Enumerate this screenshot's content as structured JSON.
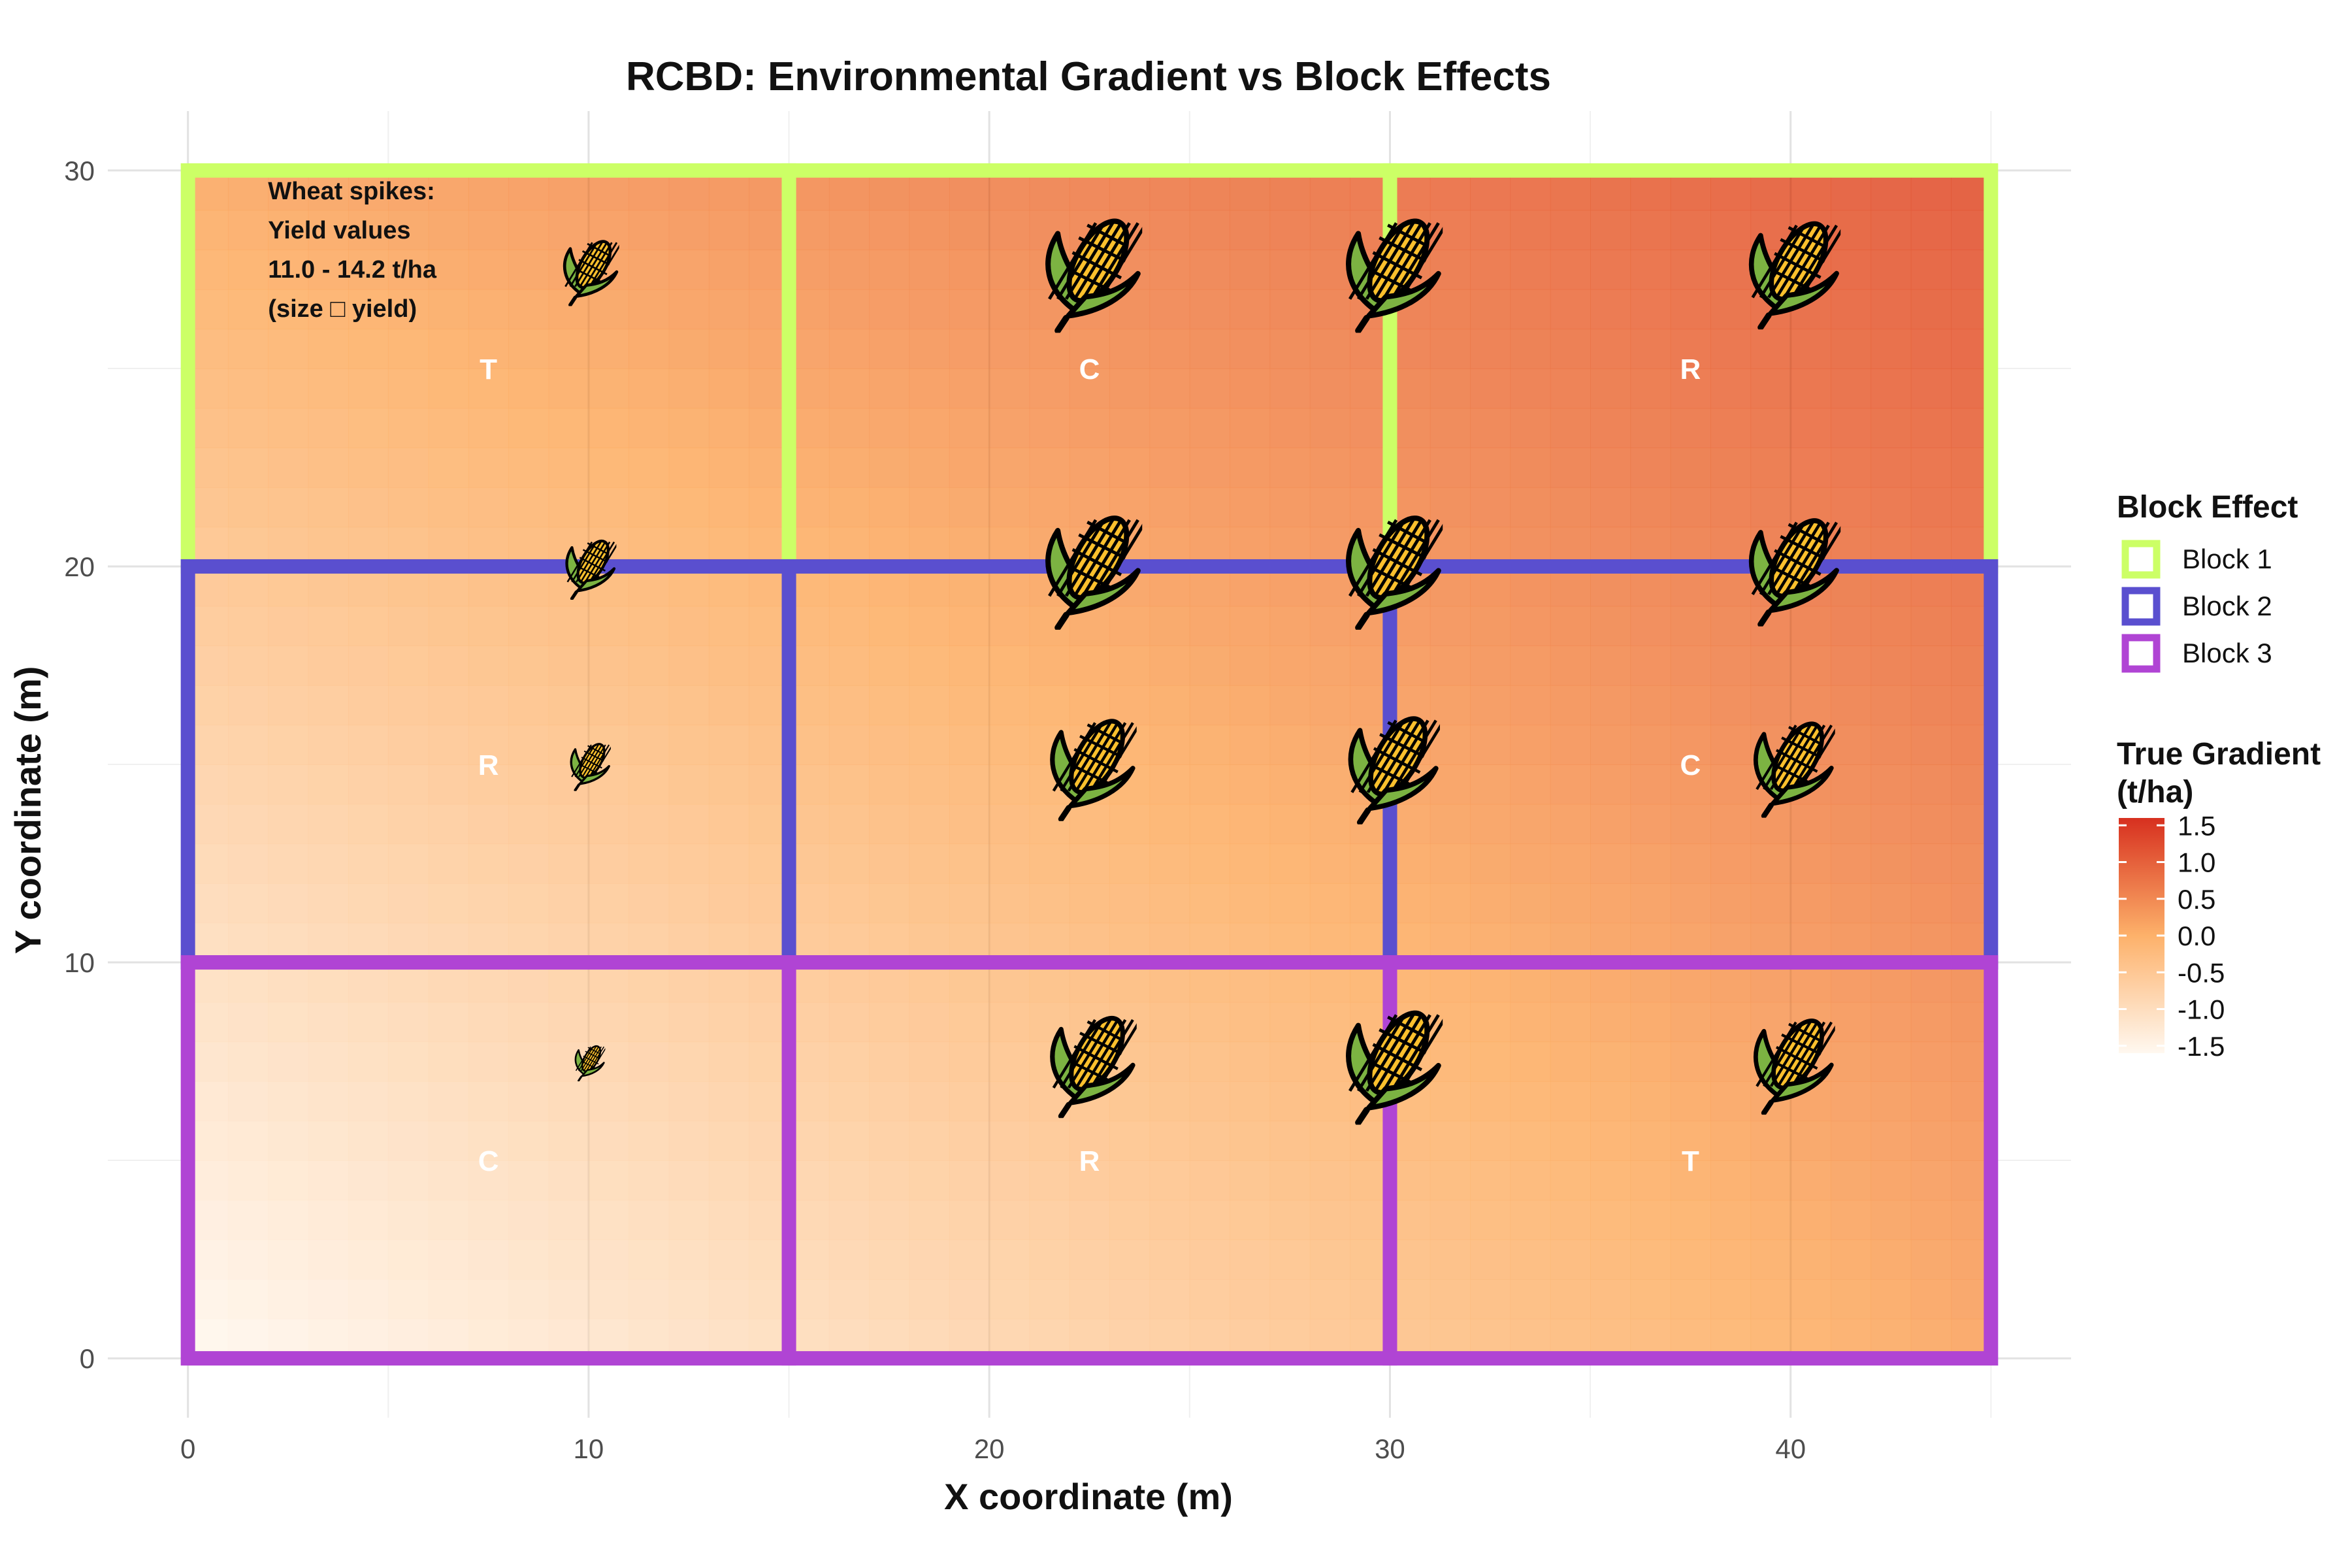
{
  "chart_data": {
    "type": "heatmap",
    "title": "RCBD: Environmental Gradient vs Block Effects",
    "xlabel": "X coordinate (m)",
    "ylabel": "Y coordinate (m)",
    "xlim": [
      -2,
      47
    ],
    "ylim": [
      -1.5,
      31.5
    ],
    "x_ticks": [
      0,
      10,
      20,
      30,
      40
    ],
    "y_ticks": [
      0,
      10,
      20,
      30
    ],
    "grid": true,
    "gradient": {
      "legend_title": "True Gradient\n(t/ha)",
      "ticks": [
        1.5,
        1.0,
        0.5,
        0.0,
        -0.5,
        -1.0,
        -1.5
      ],
      "tick_labels": [
        "1.5",
        "1.0",
        "0.5",
        "0.0",
        "-0.5",
        "-1.0",
        "-1.5"
      ],
      "range": [
        -1.6,
        1.6
      ],
      "color_low": "#fff8f0",
      "color_mid": "#fdb16a",
      "color_high": "#d7301f",
      "field_corners": {
        "x0_y0": -1.6,
        "x45_y0": 0.15,
        "x0_y30": 0.1,
        "x45_y30": 1.15
      }
    },
    "block_legend_title": "Block Effect",
    "blocks": [
      {
        "name": "Block 1",
        "y_range": [
          20,
          30
        ],
        "color": "#ccff66"
      },
      {
        "name": "Block 2",
        "y_range": [
          10,
          20
        ],
        "color": "#5a4fcf"
      },
      {
        "name": "Block 3",
        "y_range": [
          0,
          10
        ],
        "color": "#b044d4"
      }
    ],
    "plots": [
      {
        "x_range": [
          0,
          15
        ],
        "y_range": [
          20,
          30
        ],
        "label": "T",
        "label_pos": [
          7.5,
          25
        ]
      },
      {
        "x_range": [
          15,
          30
        ],
        "y_range": [
          20,
          30
        ],
        "label": "C",
        "label_pos": [
          22.5,
          25
        ]
      },
      {
        "x_range": [
          30,
          45
        ],
        "y_range": [
          20,
          30
        ],
        "label": "R",
        "label_pos": [
          37.5,
          25
        ]
      },
      {
        "x_range": [
          0,
          15
        ],
        "y_range": [
          10,
          20
        ],
        "label": "R",
        "label_pos": [
          7.5,
          15
        ]
      },
      {
        "x_range": [
          15,
          30
        ],
        "y_range": [
          10,
          20
        ],
        "label": "",
        "label_pos": [
          22.5,
          15
        ]
      },
      {
        "x_range": [
          30,
          45
        ],
        "y_range": [
          10,
          20
        ],
        "label": "C",
        "label_pos": [
          37.5,
          15
        ]
      },
      {
        "x_range": [
          0,
          15
        ],
        "y_range": [
          0,
          10
        ],
        "label": "C",
        "label_pos": [
          7.5,
          5
        ]
      },
      {
        "x_range": [
          15,
          30
        ],
        "y_range": [
          0,
          10
        ],
        "label": "R",
        "label_pos": [
          22.5,
          5
        ]
      },
      {
        "x_range": [
          30,
          45
        ],
        "y_range": [
          0,
          10
        ],
        "label": "T",
        "label_pos": [
          37.5,
          5
        ]
      }
    ],
    "wheat_spikes": [
      {
        "x": 10,
        "y": 27.5,
        "size": 0.55
      },
      {
        "x": 22.5,
        "y": 27.5,
        "size": 0.95
      },
      {
        "x": 30,
        "y": 27.5,
        "size": 0.95
      },
      {
        "x": 40,
        "y": 27.5,
        "size": 0.9
      },
      {
        "x": 10,
        "y": 20,
        "size": 0.5
      },
      {
        "x": 22.5,
        "y": 20,
        "size": 0.95
      },
      {
        "x": 30,
        "y": 20,
        "size": 0.95
      },
      {
        "x": 40,
        "y": 20,
        "size": 0.9
      },
      {
        "x": 10,
        "y": 15,
        "size": 0.4
      },
      {
        "x": 22.5,
        "y": 15,
        "size": 0.85
      },
      {
        "x": 30,
        "y": 15,
        "size": 0.9
      },
      {
        "x": 40,
        "y": 15,
        "size": 0.8
      },
      {
        "x": 10,
        "y": 7.5,
        "size": 0.3
      },
      {
        "x": 22.5,
        "y": 7.5,
        "size": 0.85
      },
      {
        "x": 30,
        "y": 7.5,
        "size": 0.95
      },
      {
        "x": 40,
        "y": 7.5,
        "size": 0.8
      }
    ],
    "annotation": {
      "lines": [
        "Wheat spikes:",
        "Yield values",
        "11.0 - 14.2 t/ha",
        "(size □ yield)"
      ],
      "x": 2,
      "y": 29.5
    }
  }
}
